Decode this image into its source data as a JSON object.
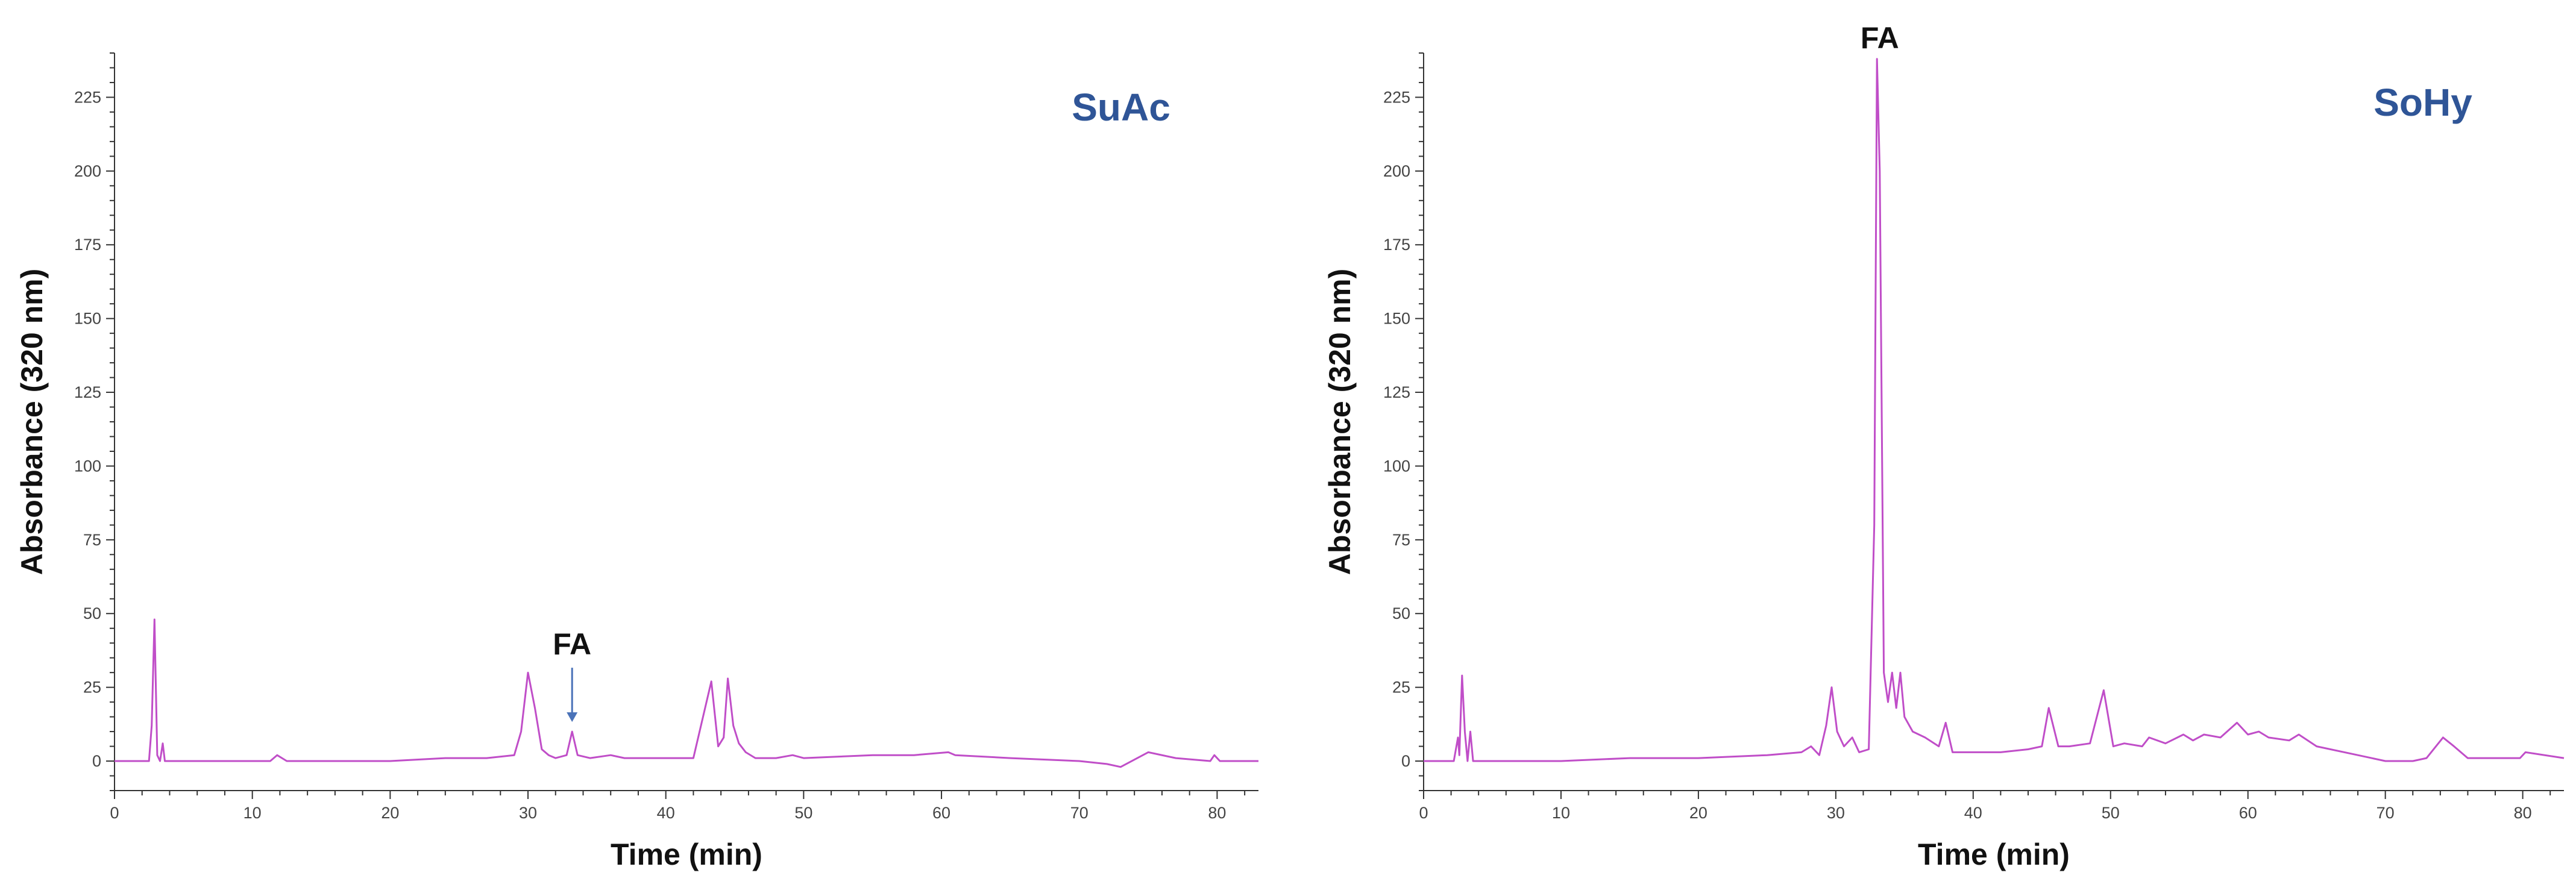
{
  "colors": {
    "trace": "#c04ec8",
    "panel_label": "#2f5597",
    "annotation_arrow": "#4a72b8",
    "axis": "#333333"
  },
  "chart_data": [
    {
      "type": "line",
      "panel_label": "SuAc",
      "xlabel": "Time (min)",
      "ylabel": "Absorbance (320 nm)",
      "xlim": [
        0,
        83
      ],
      "ylim": [
        -10,
        240
      ],
      "x_ticks": [
        0,
        10,
        20,
        30,
        40,
        50,
        60,
        70,
        80
      ],
      "y_ticks": [
        0,
        25,
        50,
        75,
        100,
        125,
        150,
        175,
        200,
        225
      ],
      "annotations": [
        {
          "text": "FA",
          "x": 33.2,
          "y": 10,
          "arrow": true
        }
      ],
      "series": [
        {
          "x": [
            0,
            1.5,
            2.5,
            2.7,
            2.9,
            3.1,
            3.3,
            3.5,
            3.65,
            3.8,
            4.2,
            10,
            11.3,
            11.8,
            12.5,
            20,
            24,
            27,
            29,
            29.5,
            30.0,
            30.5,
            31,
            31.5,
            32,
            32.8,
            33.2,
            33.6,
            34.5,
            36,
            37,
            38,
            40,
            42,
            43.3,
            43.8,
            44.2,
            44.5,
            44.9,
            45.3,
            45.8,
            46.5,
            48,
            49.2,
            50,
            55,
            58,
            60.5,
            61,
            65,
            70,
            72,
            73,
            75,
            77,
            79.5,
            79.8,
            80.2,
            83
          ],
          "y": [
            0,
            0,
            0,
            12,
            48,
            2,
            0,
            6,
            0,
            0,
            0,
            0,
            0,
            2,
            0,
            0,
            1,
            1,
            2,
            10,
            30,
            18,
            4,
            2,
            1,
            2,
            10,
            2,
            1,
            2,
            1,
            1,
            1,
            1,
            27,
            5,
            8,
            28,
            12,
            6,
            3,
            1,
            1,
            2,
            1,
            2,
            2,
            3,
            2,
            1,
            0,
            -1,
            -2,
            3,
            1,
            0,
            2,
            0,
            0
          ]
        }
      ]
    },
    {
      "type": "line",
      "panel_label": "SoHy",
      "xlabel": "Time (min)",
      "ylabel": "Absorbance (320 nm)",
      "xlim": [
        0,
        83
      ],
      "ylim": [
        -10,
        240
      ],
      "x_ticks": [
        0,
        10,
        20,
        30,
        40,
        50,
        60,
        70,
        80
      ],
      "y_ticks": [
        0,
        25,
        50,
        75,
        100,
        125,
        150,
        175,
        200,
        225
      ],
      "annotations": [
        {
          "text": "FA",
          "x": 33.2,
          "y": 238,
          "arrow": false
        }
      ],
      "series": [
        {
          "x": [
            0,
            2.2,
            2.5,
            2.6,
            2.8,
            3.0,
            3.2,
            3.4,
            3.6,
            3.8,
            10,
            15,
            20,
            25,
            27.5,
            28.2,
            28.8,
            29.3,
            29.7,
            30.1,
            30.6,
            31.2,
            31.7,
            32.4,
            32.8,
            33.0,
            33.2,
            33.5,
            33.8,
            34.1,
            34.4,
            34.7,
            35.0,
            35.6,
            36.5,
            37.5,
            38.0,
            38.5,
            40,
            42,
            44,
            45.0,
            45.5,
            46.2,
            47,
            48.5,
            49.5,
            50.2,
            51,
            52.3,
            52.8,
            54,
            55.3,
            56,
            56.8,
            58,
            59.2,
            60,
            60.8,
            61.5,
            63,
            63.7,
            65,
            68,
            70,
            72,
            73,
            74.2,
            75,
            76,
            78,
            79.8,
            80.2,
            83
          ],
          "y": [
            0,
            0,
            8,
            2,
            29,
            10,
            0,
            10,
            0,
            0,
            0,
            1,
            1,
            2,
            3,
            5,
            2,
            12,
            25,
            10,
            5,
            8,
            3,
            4,
            80,
            238,
            200,
            30,
            20,
            30,
            18,
            30,
            15,
            10,
            8,
            5,
            13,
            3,
            3,
            3,
            4,
            5,
            18,
            5,
            5,
            6,
            24,
            5,
            6,
            5,
            8,
            6,
            9,
            7,
            9,
            8,
            13,
            9,
            10,
            8,
            7,
            9,
            5,
            2,
            0,
            0,
            1,
            8,
            5,
            1,
            1,
            1,
            3,
            1
          ]
        }
      ]
    }
  ]
}
